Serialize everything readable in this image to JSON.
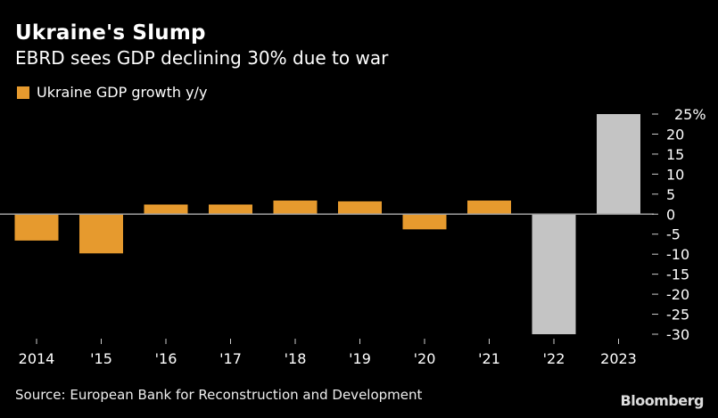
{
  "header": {
    "title": "Ukraine's Slump",
    "subtitle": "EBRD sees GDP declining 30% due to war"
  },
  "footer": {
    "source": "Source: European Bank for Reconstruction and Development",
    "brand": "Bloomberg"
  },
  "chart_data": {
    "type": "bar",
    "title": "Ukraine's Slump",
    "subtitle": "EBRD sees GDP declining 30% due to war",
    "legend": [
      {
        "name": "Ukraine GDP growth y/y",
        "color": "#e69a2e"
      }
    ],
    "legend_position": "top-left",
    "categories": [
      "2014",
      "'15",
      "'16",
      "'17",
      "'18",
      "'19",
      "'20",
      "'21",
      "'22",
      "2023"
    ],
    "series": [
      {
        "name": "Ukraine GDP growth y/y",
        "values": [
          -6.6,
          -9.8,
          2.4,
          2.4,
          3.4,
          3.2,
          -3.8,
          3.4,
          -30,
          25
        ],
        "colors": [
          "#e69a2e",
          "#e69a2e",
          "#e69a2e",
          "#e69a2e",
          "#e69a2e",
          "#e69a2e",
          "#e69a2e",
          "#e69a2e",
          "#c4c4c4",
          "#c4c4c4"
        ]
      }
    ],
    "xlabel": "",
    "ylabel": "",
    "ylim": [
      -30,
      25
    ],
    "yticks": [
      25,
      20,
      15,
      10,
      5,
      0,
      -5,
      -10,
      -15,
      -20,
      -25,
      -30
    ],
    "ytick_labels": [
      "25%",
      "20",
      "15",
      "10",
      "5",
      "0",
      "-5",
      "-10",
      "-15",
      "-20",
      "-25",
      "-30"
    ],
    "y_axis_position": "right",
    "grid": false,
    "zero_line_color": "#a0a0a0"
  }
}
